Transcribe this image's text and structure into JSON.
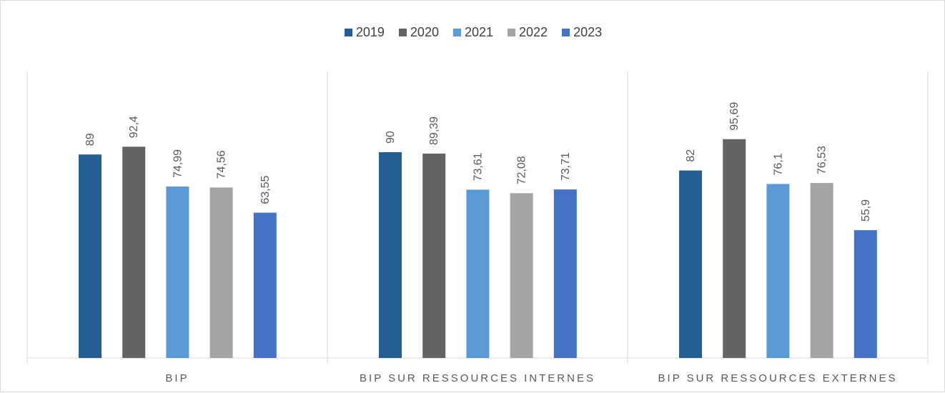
{
  "chart_data": {
    "type": "bar",
    "title": "",
    "xlabel": "",
    "ylabel": "",
    "categories": [
      "BIP",
      "BIP SUR RESSOURCES INTERNES",
      "BIP SUR RESSOURCES EXTERNES"
    ],
    "series": [
      {
        "name": "2019",
        "color": "#255e91",
        "values": [
          89,
          90,
          82
        ],
        "labels": [
          "89",
          "90",
          "82"
        ]
      },
      {
        "name": "2020",
        "color": "#636363",
        "values": [
          92.4,
          89.39,
          95.69
        ],
        "labels": [
          "92,4",
          "89,39",
          "95,69"
        ]
      },
      {
        "name": "2021",
        "color": "#5b9bd5",
        "values": [
          74.99,
          73.61,
          76.1
        ],
        "labels": [
          "74,99",
          "73,61",
          "76,1"
        ]
      },
      {
        "name": "2022",
        "color": "#a5a5a5",
        "values": [
          74.56,
          72.08,
          76.53
        ],
        "labels": [
          "74,56",
          "72,08",
          "76,53"
        ]
      },
      {
        "name": "2023",
        "color": "#4472c4",
        "values": [
          63.55,
          73.71,
          55.9
        ],
        "labels": [
          "63,55",
          "73,71",
          "55,9"
        ]
      }
    ],
    "ylim": [
      0,
      130
    ],
    "legend_position": "top",
    "grid": false,
    "axis_color": "#d9d9d9"
  }
}
